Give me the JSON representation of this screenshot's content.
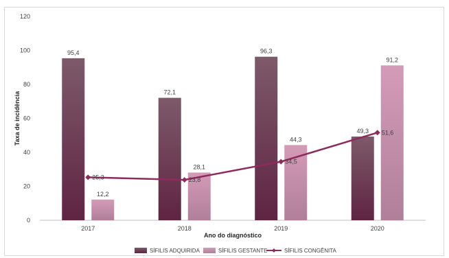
{
  "chart_data": {
    "type": "bar",
    "categories": [
      "2017",
      "2018",
      "2019",
      "2020"
    ],
    "series": [
      {
        "name": "SÍFILIS ADQUIRIDA",
        "type": "bar",
        "values": [
          95.4,
          72.1,
          96.3,
          49.3
        ],
        "labels": [
          "95,4",
          "72,1",
          "96,3",
          "49,3"
        ]
      },
      {
        "name": "SÍFILIS GESTANTE",
        "type": "bar",
        "values": [
          12.2,
          28.1,
          44.3,
          91.2
        ],
        "labels": [
          "12,2",
          "28,1",
          "44,3",
          "91,2"
        ]
      },
      {
        "name": "SÍFILIS CONGÊNITA",
        "type": "line",
        "values": [
          25.3,
          23.8,
          34.5,
          51.6
        ],
        "labels": [
          "25,3",
          "23,8",
          "34,5",
          "51,6"
        ]
      }
    ],
    "xlabel": "Ano do diagnóstico",
    "ylabel": "Taxa de incidência",
    "ylim": [
      0,
      120
    ],
    "yticks": [
      "0",
      "20",
      "40",
      "60",
      "80",
      "100",
      "120"
    ],
    "grid": false,
    "legend": "bottom",
    "colors": {
      "adquirida_top": "#7d5a6a",
      "adquirida_bottom": "#5f2442",
      "gestante_top": "#d49bb7",
      "gestante_bottom": "#b07f9a",
      "congenita": "#8e2a5c"
    }
  }
}
